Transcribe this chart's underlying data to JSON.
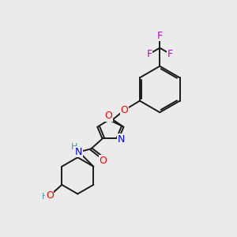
{
  "background_color": "#ebebeb",
  "atom_colors": {
    "O": "#ff0000",
    "N": "#0000ff",
    "F": "#cc00cc",
    "H_label": "#3d9999",
    "C": "#000000"
  },
  "bond_color": "#1a1a1a",
  "figsize": [
    3.0,
    3.0
  ],
  "dpi": 100
}
